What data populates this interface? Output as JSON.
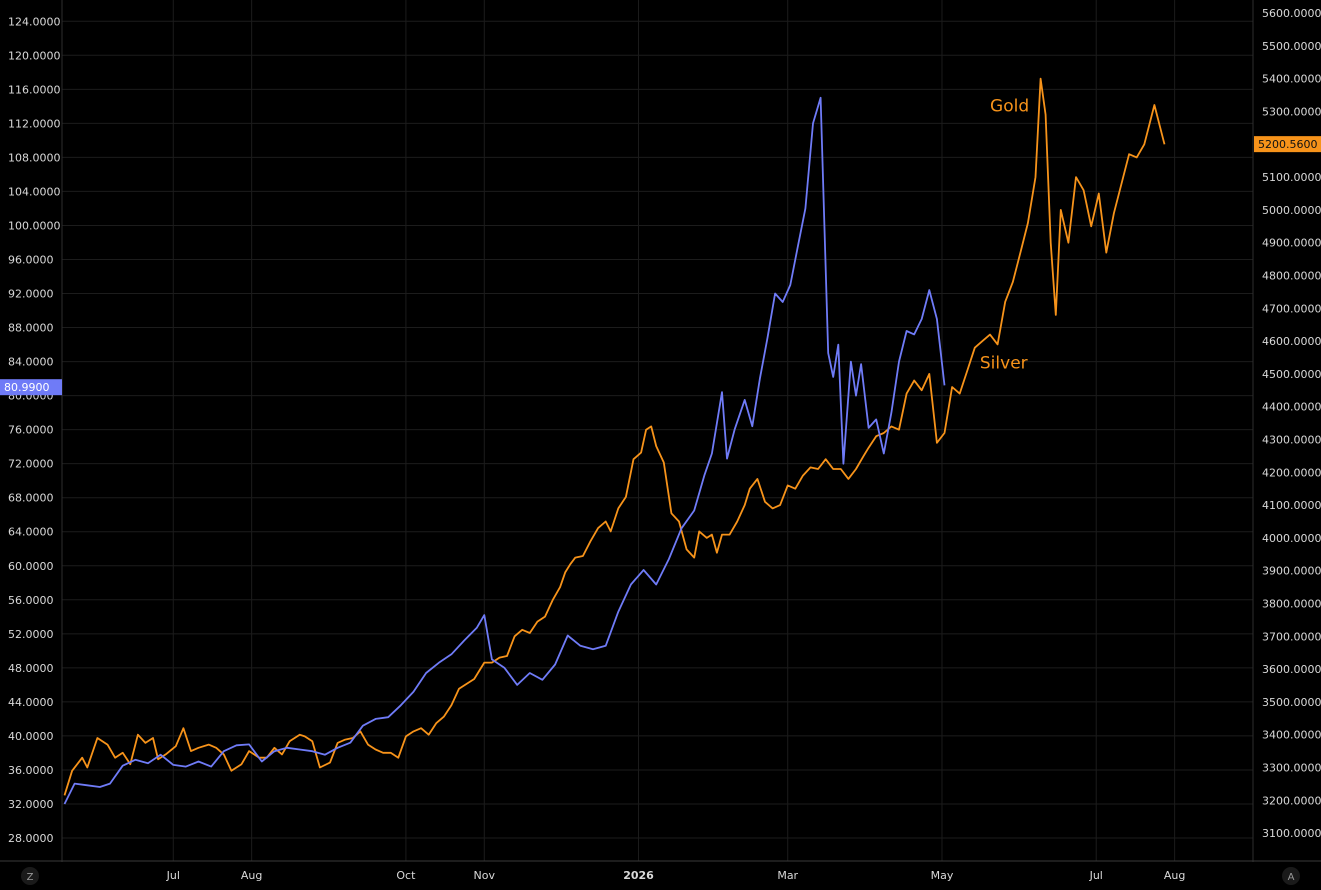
{
  "chart_data": {
    "type": "line",
    "x_ticks": [
      {
        "label": "Jul",
        "date": "2025-07-01"
      },
      {
        "label": "Aug",
        "date": "2025-08-01"
      },
      {
        "label": "Oct",
        "date": "2025-10-01"
      },
      {
        "label": "Nov",
        "date": "2025-11-01"
      },
      {
        "label": "2026",
        "date": "2026-01-01",
        "bold": true
      },
      {
        "label": "Mar",
        "date": "2026-03-01"
      },
      {
        "label": "May",
        "date": "2026-05-01"
      },
      {
        "label": "Jul",
        "date": "2026-07-01"
      },
      {
        "label": "Aug",
        "date": "2026-08-01"
      }
    ],
    "xlim": [
      "2025-05-18",
      "2026-09-01"
    ],
    "left_axis": {
      "ylim": [
        25.3,
        126.5
      ],
      "ticks": [
        "28.0000",
        "32.0000",
        "36.0000",
        "40.0000",
        "44.0000",
        "48.0000",
        "52.0000",
        "56.0000",
        "60.0000",
        "64.0000",
        "68.0000",
        "72.0000",
        "76.0000",
        "80.0000",
        "84.0000",
        "88.0000",
        "92.0000",
        "96.0000",
        "100.0000",
        "104.0000",
        "108.0000",
        "112.0000",
        "116.0000",
        "120.0000",
        "124.0000"
      ]
    },
    "right_axis": {
      "ylim": [
        3015,
        5640
      ],
      "ticks": [
        "3100.0000",
        "3200.0000",
        "3300.0000",
        "3400.0000",
        "3500.0000",
        "3600.0000",
        "3700.0000",
        "3800.0000",
        "3900.0000",
        "4000.0000",
        "4100.0000",
        "4200.0000",
        "4300.0000",
        "4400.0000",
        "4500.0000",
        "4600.0000",
        "4700.0000",
        "4800.0000",
        "4900.0000",
        "5000.0000",
        "5100.0000",
        "5200.0000",
        "5300.0000",
        "5400.0000",
        "5500.0000",
        "5600.0000"
      ]
    },
    "grid": true,
    "series": [
      {
        "name": "Gold",
        "axis": "right",
        "color": "#f7931a",
        "last_value": "5200.5600",
        "points": [
          [
            "2025-05-19",
            3215
          ],
          [
            "2025-05-22",
            3290
          ],
          [
            "2025-05-26",
            3330
          ],
          [
            "2025-05-28",
            3300
          ],
          [
            "2025-06-01",
            3390
          ],
          [
            "2025-06-05",
            3370
          ],
          [
            "2025-06-08",
            3330
          ],
          [
            "2025-06-11",
            3345
          ],
          [
            "2025-06-14",
            3310
          ],
          [
            "2025-06-17",
            3400
          ],
          [
            "2025-06-20",
            3375
          ],
          [
            "2025-06-23",
            3390
          ],
          [
            "2025-06-25",
            3325
          ],
          [
            "2025-06-28",
            3340
          ],
          [
            "2025-07-02",
            3365
          ],
          [
            "2025-07-05",
            3420
          ],
          [
            "2025-07-08",
            3350
          ],
          [
            "2025-07-11",
            3360
          ],
          [
            "2025-07-15",
            3370
          ],
          [
            "2025-07-18",
            3360
          ],
          [
            "2025-07-21",
            3340
          ],
          [
            "2025-07-24",
            3290
          ],
          [
            "2025-07-28",
            3310
          ],
          [
            "2025-07-31",
            3350
          ],
          [
            "2025-08-04",
            3330
          ],
          [
            "2025-08-07",
            3330
          ],
          [
            "2025-08-10",
            3360
          ],
          [
            "2025-08-13",
            3340
          ],
          [
            "2025-08-16",
            3380
          ],
          [
            "2025-08-20",
            3400
          ],
          [
            "2025-08-22",
            3395
          ],
          [
            "2025-08-25",
            3380
          ],
          [
            "2025-08-28",
            3300
          ],
          [
            "2025-09-01",
            3315
          ],
          [
            "2025-09-04",
            3375
          ],
          [
            "2025-09-07",
            3385
          ],
          [
            "2025-09-10",
            3390
          ],
          [
            "2025-09-13",
            3410
          ],
          [
            "2025-09-16",
            3370
          ],
          [
            "2025-09-19",
            3355
          ],
          [
            "2025-09-22",
            3345
          ],
          [
            "2025-09-25",
            3345
          ],
          [
            "2025-09-28",
            3330
          ],
          [
            "2025-10-01",
            3395
          ],
          [
            "2025-10-04",
            3410
          ],
          [
            "2025-10-07",
            3420
          ],
          [
            "2025-10-10",
            3400
          ],
          [
            "2025-10-13",
            3435
          ],
          [
            "2025-10-16",
            3455
          ],
          [
            "2025-10-19",
            3490
          ],
          [
            "2025-10-22",
            3540
          ],
          [
            "2025-10-25",
            3555
          ],
          [
            "2025-10-28",
            3570
          ],
          [
            "2025-11-01",
            3620
          ],
          [
            "2025-11-04",
            3620
          ],
          [
            "2025-11-07",
            3635
          ],
          [
            "2025-11-10",
            3640
          ],
          [
            "2025-11-13",
            3700
          ],
          [
            "2025-11-16",
            3720
          ],
          [
            "2025-11-19",
            3710
          ],
          [
            "2025-11-22",
            3745
          ],
          [
            "2025-11-25",
            3760
          ],
          [
            "2025-11-28",
            3810
          ],
          [
            "2025-12-01",
            3850
          ],
          [
            "2025-12-03",
            3895
          ],
          [
            "2025-12-05",
            3920
          ],
          [
            "2025-12-07",
            3940
          ],
          [
            "2025-12-10",
            3945
          ],
          [
            "2025-12-13",
            3990
          ],
          [
            "2025-12-16",
            4030
          ],
          [
            "2025-12-19",
            4050
          ],
          [
            "2025-12-21",
            4020
          ],
          [
            "2025-12-24",
            4090
          ],
          [
            "2025-12-27",
            4125
          ],
          [
            "2025-12-30",
            4240
          ],
          [
            "2026-01-02",
            4260
          ],
          [
            "2026-01-04",
            4330
          ],
          [
            "2026-01-06",
            4340
          ],
          [
            "2026-01-08",
            4280
          ],
          [
            "2026-01-11",
            4230
          ],
          [
            "2026-01-14",
            4075
          ],
          [
            "2026-01-17",
            4050
          ],
          [
            "2026-01-20",
            3965
          ],
          [
            "2026-01-23",
            3940
          ],
          [
            "2026-01-25",
            4020
          ],
          [
            "2026-01-28",
            4000
          ],
          [
            "2026-01-30",
            4010
          ],
          [
            "2026-02-01",
            3955
          ],
          [
            "2026-02-03",
            4010
          ],
          [
            "2026-02-06",
            4010
          ],
          [
            "2026-02-09",
            4050
          ],
          [
            "2026-02-12",
            4100
          ],
          [
            "2026-02-14",
            4150
          ],
          [
            "2026-02-17",
            4180
          ],
          [
            "2026-02-20",
            4110
          ],
          [
            "2026-02-23",
            4090
          ],
          [
            "2026-02-26",
            4100
          ],
          [
            "2026-03-01",
            4160
          ],
          [
            "2026-03-04",
            4150
          ],
          [
            "2026-03-07",
            4190
          ],
          [
            "2026-03-10",
            4215
          ],
          [
            "2026-03-13",
            4210
          ],
          [
            "2026-03-16",
            4240
          ],
          [
            "2026-03-19",
            4210
          ],
          [
            "2026-03-22",
            4210
          ],
          [
            "2026-03-25",
            4180
          ],
          [
            "2026-03-28",
            4210
          ],
          [
            "2026-03-31",
            4250
          ],
          [
            "2026-04-02",
            4275
          ],
          [
            "2026-04-05",
            4310
          ],
          [
            "2026-04-08",
            4320
          ],
          [
            "2026-04-11",
            4340
          ],
          [
            "2026-04-14",
            4330
          ],
          [
            "2026-04-17",
            4440
          ],
          [
            "2026-04-20",
            4480
          ],
          [
            "2026-04-23",
            4450
          ],
          [
            "2026-04-26",
            4500
          ],
          [
            "2026-04-29",
            4290
          ],
          [
            "2026-05-02",
            4320
          ],
          [
            "2026-05-05",
            4460
          ],
          [
            "2026-05-08",
            4440
          ],
          [
            "2026-05-11",
            4510
          ],
          [
            "2026-05-14",
            4580
          ],
          [
            "2026-05-17",
            4600
          ],
          [
            "2026-05-20",
            4620
          ],
          [
            "2026-05-23",
            4590
          ],
          [
            "2026-05-26",
            4720
          ],
          [
            "2026-05-29",
            4780
          ],
          [
            "2026-06-01",
            4870
          ],
          [
            "2026-06-04",
            4960
          ],
          [
            "2026-06-07",
            5100
          ],
          [
            "2026-06-09",
            5400
          ],
          [
            "2026-06-11",
            5290
          ],
          [
            "2026-06-13",
            4900
          ],
          [
            "2026-06-15",
            4680
          ],
          [
            "2026-06-17",
            5000
          ],
          [
            "2026-06-20",
            4900
          ],
          [
            "2026-06-23",
            5100
          ],
          [
            "2026-06-26",
            5060
          ],
          [
            "2026-06-29",
            4950
          ],
          [
            "2026-07-02",
            5050
          ],
          [
            "2026-07-05",
            4870
          ],
          [
            "2026-07-08",
            4990
          ],
          [
            "2026-07-11",
            5080
          ],
          [
            "2026-07-14",
            5170
          ],
          [
            "2026-07-17",
            5160
          ],
          [
            "2026-07-20",
            5200
          ],
          [
            "2026-07-24",
            5320
          ],
          [
            "2026-07-28",
            5200
          ]
        ]
      },
      {
        "name": "Silver",
        "axis": "left",
        "color": "#6f7bf7",
        "last_value": "80.9900",
        "points": [
          [
            "2025-05-19",
            32.0
          ],
          [
            "2025-05-23",
            34.4
          ],
          [
            "2025-05-28",
            34.2
          ],
          [
            "2025-06-02",
            34.0
          ],
          [
            "2025-06-06",
            34.4
          ],
          [
            "2025-06-11",
            36.5
          ],
          [
            "2025-06-16",
            37.2
          ],
          [
            "2025-06-21",
            36.8
          ],
          [
            "2025-06-26",
            37.8
          ],
          [
            "2025-07-01",
            36.6
          ],
          [
            "2025-07-06",
            36.4
          ],
          [
            "2025-07-11",
            37.0
          ],
          [
            "2025-07-16",
            36.4
          ],
          [
            "2025-07-21",
            38.2
          ],
          [
            "2025-07-26",
            38.9
          ],
          [
            "2025-07-31",
            39.0
          ],
          [
            "2025-08-05",
            37.0
          ],
          [
            "2025-08-10",
            38.2
          ],
          [
            "2025-08-15",
            38.6
          ],
          [
            "2025-08-20",
            38.4
          ],
          [
            "2025-08-25",
            38.2
          ],
          [
            "2025-08-30",
            37.8
          ],
          [
            "2025-09-04",
            38.6
          ],
          [
            "2025-09-09",
            39.2
          ],
          [
            "2025-09-14",
            41.2
          ],
          [
            "2025-09-19",
            42.0
          ],
          [
            "2025-09-24",
            42.2
          ],
          [
            "2025-09-29",
            43.6
          ],
          [
            "2025-10-04",
            45.2
          ],
          [
            "2025-10-09",
            47.4
          ],
          [
            "2025-10-14",
            48.6
          ],
          [
            "2025-10-19",
            49.6
          ],
          [
            "2025-10-24",
            51.2
          ],
          [
            "2025-10-29",
            52.7
          ],
          [
            "2025-11-01",
            54.2
          ],
          [
            "2025-11-04",
            49.0
          ],
          [
            "2025-11-09",
            48.0
          ],
          [
            "2025-11-14",
            46.0
          ],
          [
            "2025-11-19",
            47.4
          ],
          [
            "2025-11-24",
            46.6
          ],
          [
            "2025-11-29",
            48.4
          ],
          [
            "2025-12-04",
            51.8
          ],
          [
            "2025-12-09",
            50.6
          ],
          [
            "2025-12-14",
            50.2
          ],
          [
            "2025-12-19",
            50.6
          ],
          [
            "2025-12-24",
            54.6
          ],
          [
            "2025-12-29",
            57.8
          ],
          [
            "2026-01-03",
            59.5
          ],
          [
            "2026-01-08",
            57.8
          ],
          [
            "2026-01-13",
            60.8
          ],
          [
            "2026-01-18",
            64.4
          ],
          [
            "2026-01-23",
            66.5
          ],
          [
            "2026-01-27",
            70.6
          ],
          [
            "2026-01-30",
            73.2
          ],
          [
            "2026-02-03",
            80.4
          ],
          [
            "2026-02-05",
            72.6
          ],
          [
            "2026-02-08",
            76.0
          ],
          [
            "2026-02-12",
            79.5
          ],
          [
            "2026-02-15",
            76.4
          ],
          [
            "2026-02-18",
            82.0
          ],
          [
            "2026-02-21",
            86.8
          ],
          [
            "2026-02-24",
            92.0
          ],
          [
            "2026-02-27",
            91.0
          ],
          [
            "2026-03-02",
            93.0
          ],
          [
            "2026-03-05",
            97.5
          ],
          [
            "2026-03-08",
            102.0
          ],
          [
            "2026-03-11",
            112.0
          ],
          [
            "2026-03-14",
            115.0
          ],
          [
            "2026-03-17",
            85.0
          ],
          [
            "2026-03-19",
            82.2
          ],
          [
            "2026-03-21",
            86.0
          ],
          [
            "2026-03-23",
            72.0
          ],
          [
            "2026-03-26",
            84.0
          ],
          [
            "2026-03-28",
            80.0
          ],
          [
            "2026-03-30",
            83.7
          ],
          [
            "2026-04-02",
            76.2
          ],
          [
            "2026-04-05",
            77.2
          ],
          [
            "2026-04-08",
            73.2
          ],
          [
            "2026-04-11",
            78.0
          ],
          [
            "2026-04-14",
            84.0
          ],
          [
            "2026-04-17",
            87.6
          ],
          [
            "2026-04-20",
            87.2
          ],
          [
            "2026-04-23",
            89.0
          ],
          [
            "2026-04-26",
            92.4
          ],
          [
            "2026-04-29",
            89.0
          ],
          [
            "2026-05-02",
            81.2
          ]
        ]
      }
    ],
    "annotations": [
      {
        "text": "Gold",
        "series": "Gold",
        "date": "2026-05-20",
        "value_axis": "right",
        "value": 5300
      },
      {
        "text": "Silver",
        "series": "Silver",
        "date": "2026-05-16",
        "value_axis": "left",
        "value": 83.2
      }
    ]
  },
  "corner_left": "Z",
  "corner_right": "A"
}
